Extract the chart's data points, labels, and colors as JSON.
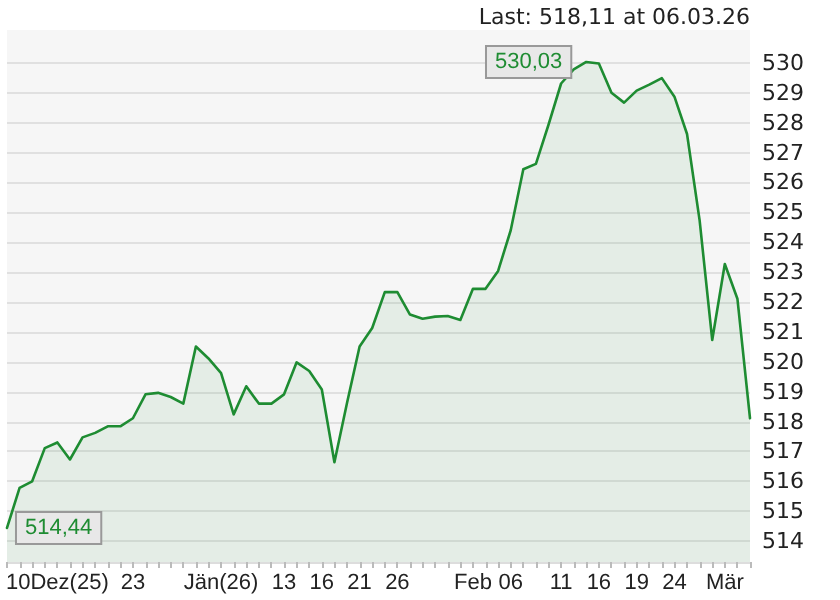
{
  "chart_data": {
    "type": "area",
    "categories": [
      null,
      null,
      null,
      null,
      "10Dez(25)",
      null,
      null,
      null,
      null,
      null,
      "23",
      null,
      null,
      null,
      null,
      null,
      null,
      "Jän(26)",
      null,
      null,
      null,
      null,
      "13",
      null,
      null,
      "16",
      null,
      null,
      "21",
      null,
      null,
      "26",
      null,
      null,
      null,
      null,
      null,
      "Feb",
      null,
      null,
      "06",
      null,
      null,
      null,
      "11",
      null,
      null,
      "16",
      null,
      null,
      "19",
      null,
      null,
      "24",
      null,
      null,
      null,
      "Mär",
      null,
      null
    ],
    "series": [
      {
        "color": "#1e8c32",
        "values": [
          514.44,
          515.78,
          516.0,
          517.11,
          517.3,
          516.73,
          517.47,
          517.62,
          517.84,
          517.84,
          518.11,
          518.91,
          518.96,
          518.82,
          518.6,
          520.51,
          520.11,
          519.62,
          518.24,
          519.18,
          518.6,
          518.6,
          518.91,
          519.98,
          519.69,
          519.07,
          516.64,
          518.62,
          520.51,
          521.13,
          522.33,
          522.33,
          521.58,
          521.44,
          521.51,
          521.53,
          521.4,
          522.44,
          522.44,
          523.04,
          524.4,
          526.44,
          526.62,
          527.93,
          529.31,
          529.78,
          530.03,
          529.98,
          529.0,
          528.67,
          529.07,
          529.27,
          529.49,
          528.87,
          527.62,
          524.73,
          520.73,
          523.27,
          522.11,
          518.11
        ]
      }
    ],
    "ylim": [
      513.3,
      531.1
    ],
    "yticks": [
      514,
      515,
      516,
      517,
      518,
      519,
      520,
      521,
      522,
      523,
      524,
      525,
      526,
      527,
      528,
      529,
      530
    ],
    "grid": "y",
    "marker": "none",
    "line_style": "solid",
    "annotations": [
      "Last: 518,11 at 06.03.26",
      {
        "text": "530,03",
        "y": 530.03
      },
      {
        "text": "514,44",
        "y": 514.44
      }
    ]
  }
}
